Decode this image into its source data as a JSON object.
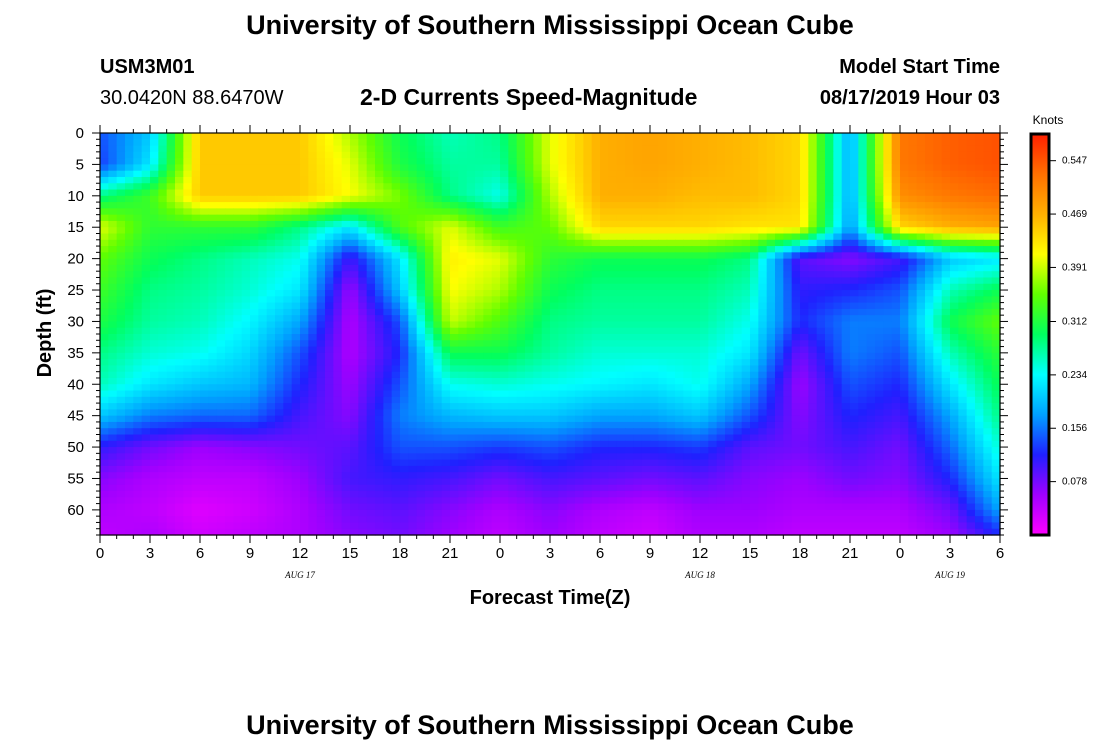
{
  "header": {
    "title": "University of Southern Mississippi Ocean Cube",
    "station_id": "USM3M01",
    "station_coords": "30.0420N 88.6470W",
    "subtitle": "2-D Currents Speed-Magnitude",
    "model_start_label": "Model Start Time",
    "model_start_value": "08/17/2019 Hour 03"
  },
  "footer": {
    "title": "University of Southern Mississippi Ocean Cube"
  },
  "chart_data": {
    "type": "heatmap",
    "xlabel": "Forecast Time(Z)",
    "ylabel": "Depth (ft)",
    "x_range_hours": [
      0,
      54
    ],
    "y_range_ft": [
      0,
      64
    ],
    "x_ticks": [
      "0",
      "3",
      "6",
      "9",
      "12",
      "15",
      "18",
      "21",
      "0",
      "3",
      "6",
      "9",
      "12",
      "15",
      "18",
      "21",
      "0",
      "3",
      "6"
    ],
    "date_labels": [
      {
        "text": "AUG 17",
        "at_hour": 12
      },
      {
        "text": "AUG 18",
        "at_hour": 36
      },
      {
        "text": "AUG 19",
        "at_hour": 51
      }
    ],
    "y_ticks": [
      0,
      5,
      10,
      15,
      20,
      25,
      30,
      35,
      40,
      45,
      50,
      55,
      60
    ],
    "colorbar": {
      "unit": "Knots",
      "ticks": [
        "0.547",
        "0.469",
        "0.391",
        "0.312",
        "0.234",
        "0.156",
        "0.078"
      ],
      "min": 0.0,
      "max": 0.586,
      "colors": [
        "#ff00ff",
        "#a000ff",
        "#2020ff",
        "#00a0ff",
        "#00ffff",
        "#00ff60",
        "#60ff00",
        "#ffff00",
        "#ffb000",
        "#ff7000",
        "#ff2000"
      ]
    },
    "depths_ft": [
      0,
      5,
      10,
      15,
      20,
      25,
      30,
      35,
      40,
      45,
      50,
      55,
      60,
      64
    ],
    "times_hour": [
      0,
      3,
      6,
      9,
      12,
      15,
      18,
      21,
      24,
      27,
      30,
      33,
      36,
      39,
      42,
      45,
      48,
      51,
      54
    ],
    "speed_knots": [
      [
        0.14,
        0.2,
        0.45,
        0.45,
        0.45,
        0.38,
        0.3,
        0.26,
        0.28,
        0.4,
        0.47,
        0.48,
        0.47,
        0.46,
        0.44,
        0.18,
        0.52,
        0.54,
        0.55
      ],
      [
        0.13,
        0.22,
        0.45,
        0.45,
        0.45,
        0.4,
        0.31,
        0.27,
        0.27,
        0.4,
        0.47,
        0.48,
        0.47,
        0.46,
        0.44,
        0.18,
        0.52,
        0.54,
        0.55
      ],
      [
        0.28,
        0.33,
        0.45,
        0.45,
        0.45,
        0.41,
        0.36,
        0.28,
        0.24,
        0.38,
        0.47,
        0.47,
        0.46,
        0.46,
        0.44,
        0.18,
        0.5,
        0.52,
        0.53
      ],
      [
        0.4,
        0.32,
        0.32,
        0.32,
        0.28,
        0.22,
        0.34,
        0.4,
        0.33,
        0.35,
        0.44,
        0.44,
        0.44,
        0.43,
        0.43,
        0.17,
        0.44,
        0.47,
        0.48
      ],
      [
        0.35,
        0.3,
        0.28,
        0.26,
        0.24,
        0.1,
        0.22,
        0.42,
        0.4,
        0.32,
        0.3,
        0.3,
        0.3,
        0.28,
        0.09,
        0.07,
        0.1,
        0.2,
        0.22
      ],
      [
        0.33,
        0.28,
        0.27,
        0.25,
        0.22,
        0.06,
        0.2,
        0.41,
        0.38,
        0.3,
        0.28,
        0.28,
        0.28,
        0.26,
        0.11,
        0.12,
        0.14,
        0.26,
        0.3
      ],
      [
        0.31,
        0.27,
        0.26,
        0.23,
        0.18,
        0.05,
        0.14,
        0.39,
        0.34,
        0.28,
        0.27,
        0.27,
        0.27,
        0.24,
        0.12,
        0.16,
        0.16,
        0.3,
        0.35
      ],
      [
        0.28,
        0.25,
        0.24,
        0.21,
        0.14,
        0.05,
        0.12,
        0.3,
        0.3,
        0.27,
        0.25,
        0.25,
        0.25,
        0.22,
        0.08,
        0.16,
        0.14,
        0.26,
        0.32
      ],
      [
        0.26,
        0.22,
        0.2,
        0.19,
        0.12,
        0.06,
        0.14,
        0.24,
        0.25,
        0.24,
        0.23,
        0.22,
        0.24,
        0.18,
        0.06,
        0.14,
        0.12,
        0.22,
        0.3
      ],
      [
        0.2,
        0.16,
        0.15,
        0.15,
        0.1,
        0.07,
        0.16,
        0.19,
        0.2,
        0.2,
        0.18,
        0.18,
        0.2,
        0.14,
        0.07,
        0.12,
        0.1,
        0.18,
        0.28
      ],
      [
        0.11,
        0.08,
        0.06,
        0.07,
        0.08,
        0.09,
        0.14,
        0.14,
        0.13,
        0.14,
        0.12,
        0.12,
        0.13,
        0.09,
        0.08,
        0.1,
        0.08,
        0.15,
        0.25
      ],
      [
        0.07,
        0.05,
        0.04,
        0.04,
        0.06,
        0.1,
        0.11,
        0.1,
        0.08,
        0.1,
        0.09,
        0.08,
        0.09,
        0.07,
        0.06,
        0.08,
        0.07,
        0.12,
        0.22
      ],
      [
        0.05,
        0.04,
        0.02,
        0.03,
        0.05,
        0.08,
        0.09,
        0.07,
        0.05,
        0.07,
        0.05,
        0.04,
        0.06,
        0.06,
        0.05,
        0.05,
        0.05,
        0.08,
        0.18
      ],
      [
        0.04,
        0.05,
        0.03,
        0.04,
        0.05,
        0.07,
        0.08,
        0.06,
        0.04,
        0.06,
        0.04,
        0.03,
        0.05,
        0.05,
        0.04,
        0.04,
        0.04,
        0.06,
        0.12
      ]
    ]
  }
}
